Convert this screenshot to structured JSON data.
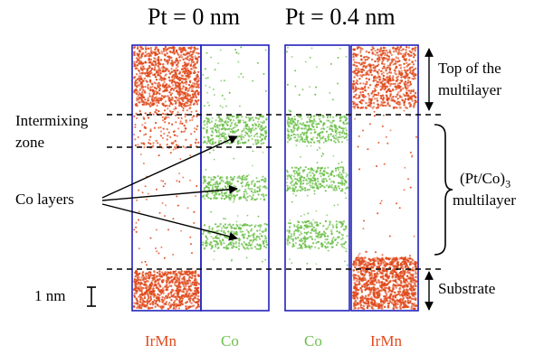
{
  "titles": {
    "left": "Pt = 0 nm",
    "right": "Pt = 0.4 nm"
  },
  "left_labels": {
    "intermixing_line1": "Intermixing",
    "intermixing_line2": "zone",
    "co_layers": "Co layers",
    "scale": "1 nm"
  },
  "right_labels": {
    "top_line1": "Top of the",
    "top_line2": "multilayer",
    "multilayer_formula": "(Pt/Co)",
    "multilayer_sub": "3",
    "multilayer_word": "multilayer",
    "substrate": "Substrate"
  },
  "columns": [
    {
      "label": "IrMn",
      "element": "irmn",
      "color": "#e04a1c"
    },
    {
      "label": "Co",
      "element": "co",
      "color": "#6cc04a"
    },
    {
      "label": "Co",
      "element": "co",
      "color": "#6cc04a"
    },
    {
      "label": "IrMn",
      "element": "irmn",
      "color": "#e04a1c"
    }
  ],
  "colors": {
    "irmn": "#e04a1c",
    "co": "#6cc04a",
    "frame": "#2222bb",
    "frame_light": "#8a8ad0"
  }
}
